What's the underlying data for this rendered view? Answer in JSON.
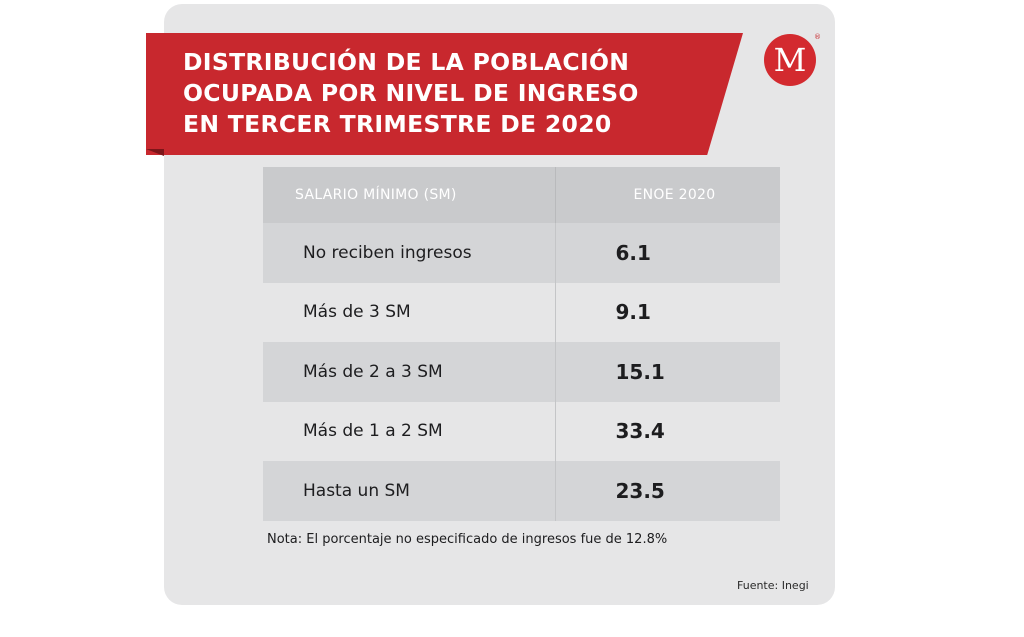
{
  "title_lines": [
    "DISTRIBUCIÓN DE LA POBLACIÓN",
    "OCUPADA POR NIVEL DE INGRESO",
    "EN TERCER TRIMESTRE DE 2020"
  ],
  "logo": {
    "letter": "M",
    "mark": "®",
    "icon": "milenio-logo-icon"
  },
  "chart_data": {
    "type": "table",
    "columns": [
      "SALARIO MÍNIMO (SM)",
      "ENOE 2020"
    ],
    "rows": [
      {
        "label": "No reciben ingresos",
        "value": "6.1"
      },
      {
        "label": "Más de 3 SM",
        "value": "9.1"
      },
      {
        "label": "Más de 2 a 3 SM",
        "value": "15.1"
      },
      {
        "label": "Más de 1 a 2 SM",
        "value": "33.4"
      },
      {
        "label": "Hasta un SM",
        "value": "23.5"
      }
    ]
  },
  "note": "Nota: El porcentaje no especificado de ingresos fue de 12.8%",
  "source": "Fuente: Inegi",
  "colors": {
    "banner": "#c8282e",
    "card": "#e6e6e7",
    "header": "#c9cacc",
    "row_shade": "#d4d5d7"
  }
}
